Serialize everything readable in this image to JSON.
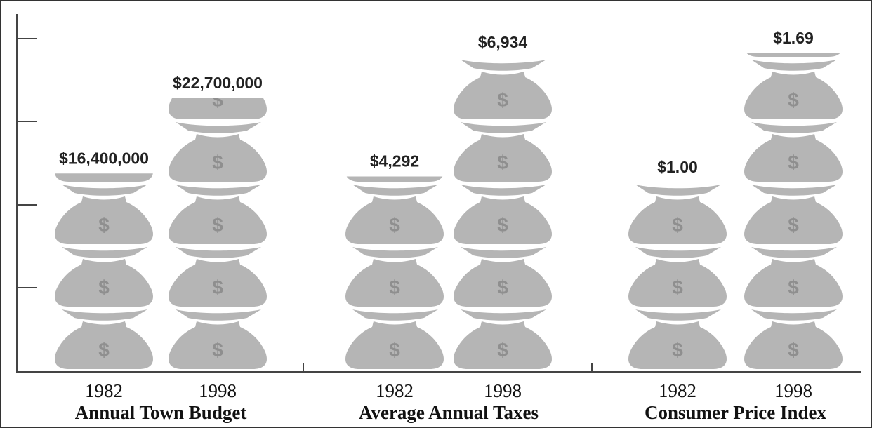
{
  "chart_data": {
    "type": "pictograph",
    "groups": [
      {
        "name": "Annual Town Budget",
        "categories": [
          "1982",
          "1998"
        ],
        "values": [
          16400000,
          22700000
        ],
        "value_labels": [
          "$16,400,000",
          "$22,700,000"
        ]
      },
      {
        "name": "Average Annual Taxes",
        "categories": [
          "1982",
          "1998"
        ],
        "values": [
          4292,
          6934
        ],
        "value_labels": [
          "$4,292",
          "$6,934"
        ]
      },
      {
        "name": "Consumer Price Index",
        "categories": [
          "1982",
          "1998"
        ],
        "values": [
          1.0,
          1.69
        ],
        "value_labels": [
          "$1.00",
          "$1.69"
        ]
      }
    ],
    "color": "#b5b5b5"
  }
}
